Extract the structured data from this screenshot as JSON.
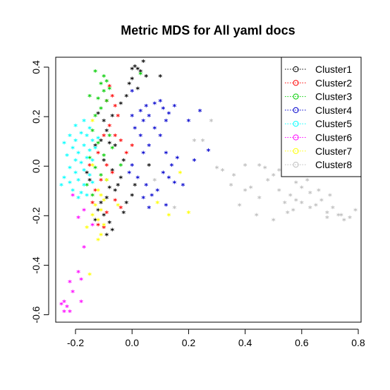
{
  "chart_data": {
    "type": "scatter",
    "title": "Metric MDS for All yaml docs",
    "xlabel": "",
    "ylabel": "",
    "xlim": [
      -0.27,
      0.81
    ],
    "ylim": [
      -0.63,
      0.44
    ],
    "x_ticks": [
      -0.2,
      0.0,
      0.2,
      0.4,
      0.6,
      0.8
    ],
    "x_tick_labels": [
      "-0.2",
      "0.0",
      "0.2",
      "0.4",
      "0.6",
      "0.8"
    ],
    "y_ticks": [
      -0.6,
      -0.4,
      -0.2,
      0.0,
      0.2,
      0.4
    ],
    "y_tick_labels": [
      "-0.6",
      "-0.4",
      "-0.2",
      "0.0",
      "0.2",
      "0.4"
    ],
    "grid": false,
    "legend_position": "top-right",
    "marker": "*",
    "series": [
      {
        "name": "Cluster1",
        "color": "#000000",
        "points": [
          [
            0.0,
            0.39
          ],
          [
            0.01,
            0.4
          ],
          [
            0.02,
            0.39
          ],
          [
            0.04,
            0.42
          ],
          [
            0.03,
            0.38
          ],
          [
            0.05,
            0.36
          ],
          [
            0.0,
            0.35
          ],
          [
            -0.01,
            0.33
          ],
          [
            0.02,
            0.31
          ],
          [
            0.1,
            0.36
          ],
          [
            -0.02,
            0.28
          ],
          [
            -0.04,
            0.25
          ],
          [
            -0.07,
            0.2
          ],
          [
            -0.1,
            0.18
          ],
          [
            -0.12,
            0.21
          ],
          [
            -0.09,
            0.14
          ],
          [
            -0.11,
            0.1
          ],
          [
            -0.08,
            0.09
          ],
          [
            -0.06,
            0.08
          ],
          [
            -0.13,
            0.08
          ],
          [
            -0.1,
            0.02
          ],
          [
            -0.07,
            -0.02
          ],
          [
            -0.04,
            -0.05
          ],
          [
            -0.05,
            -0.08
          ],
          [
            -0.08,
            -0.09
          ],
          [
            -0.06,
            -0.1
          ],
          [
            -0.09,
            -0.13
          ],
          [
            -0.11,
            -0.15
          ],
          [
            -0.12,
            -0.18
          ],
          [
            -0.1,
            -0.2
          ],
          [
            -0.08,
            -0.23
          ],
          [
            -0.07,
            -0.26
          ],
          [
            -0.03,
            -0.19
          ],
          [
            -0.02,
            -0.15
          ],
          [
            0.0,
            -0.12
          ],
          [
            -0.15,
            -0.06
          ],
          [
            -0.16,
            -0.03
          ],
          [
            -0.13,
            -0.22
          ],
          [
            -0.09,
            -0.28
          ],
          [
            0.06,
            0.0
          ],
          [
            0.01,
            -0.08
          ],
          [
            -0.03,
            0.02
          ]
        ]
      },
      {
        "name": "Cluster2",
        "color": "#ff0000",
        "points": [
          [
            -0.08,
            0.32
          ],
          [
            -0.07,
            0.28
          ],
          [
            -0.09,
            0.26
          ],
          [
            -0.06,
            0.24
          ],
          [
            -0.05,
            0.2
          ],
          [
            -0.08,
            0.16
          ],
          [
            -0.1,
            0.12
          ],
          [
            -0.06,
            0.12
          ],
          [
            -0.04,
            0.1
          ],
          [
            -0.12,
            0.05
          ],
          [
            -0.09,
            0.0
          ],
          [
            -0.07,
            -0.03
          ],
          [
            -0.11,
            -0.06
          ],
          [
            -0.13,
            -0.1
          ],
          [
            -0.06,
            -0.14
          ],
          [
            -0.04,
            -0.17
          ],
          [
            -0.09,
            -0.19
          ],
          [
            -0.12,
            -0.24
          ],
          [
            -0.02,
            0.05
          ],
          [
            0.0,
            0.08
          ],
          [
            -0.15,
            0.0
          ],
          [
            -0.14,
            -0.15
          ],
          [
            -0.1,
            -0.25
          ]
        ]
      },
      {
        "name": "Cluster3",
        "color": "#00cd00",
        "points": [
          [
            -0.13,
            0.38
          ],
          [
            -0.1,
            0.36
          ],
          [
            -0.09,
            0.34
          ],
          [
            -0.11,
            0.33
          ],
          [
            -0.08,
            0.31
          ],
          [
            -0.1,
            0.3
          ],
          [
            -0.15,
            0.28
          ],
          [
            -0.12,
            0.27
          ],
          [
            -0.09,
            0.26
          ],
          [
            -0.11,
            0.23
          ],
          [
            -0.13,
            0.2
          ],
          [
            -0.14,
            0.14
          ],
          [
            -0.08,
            0.12
          ],
          [
            -0.12,
            0.09
          ],
          [
            -0.1,
            0.04
          ],
          [
            -0.15,
            0.03
          ],
          [
            -0.13,
            -0.01
          ],
          [
            -0.11,
            -0.04
          ],
          [
            -0.09,
            -0.06
          ],
          [
            -0.16,
            -0.08
          ],
          [
            -0.14,
            -0.12
          ],
          [
            0.03,
            0.37
          ],
          [
            -0.04,
            0.0
          ],
          [
            -0.07,
            0.07
          ]
        ]
      },
      {
        "name": "Cluster4",
        "color": "#0000cd",
        "points": [
          [
            0.05,
            0.24
          ],
          [
            0.08,
            0.25
          ],
          [
            0.1,
            0.26
          ],
          [
            0.11,
            0.23
          ],
          [
            0.13,
            0.21
          ],
          [
            0.15,
            0.24
          ],
          [
            0.12,
            0.18
          ],
          [
            0.06,
            0.2
          ],
          [
            0.03,
            0.22
          ],
          [
            0.0,
            0.2
          ],
          [
            0.04,
            0.18
          ],
          [
            0.08,
            0.15
          ],
          [
            0.1,
            0.12
          ],
          [
            0.2,
            0.18
          ],
          [
            0.24,
            0.22
          ],
          [
            0.27,
            0.06
          ],
          [
            0.22,
            0.02
          ],
          [
            0.16,
            0.03
          ],
          [
            0.12,
            0.05
          ],
          [
            0.14,
            0.0
          ],
          [
            0.11,
            -0.03
          ],
          [
            0.13,
            -0.05
          ],
          [
            0.15,
            -0.07
          ],
          [
            0.09,
            -0.1
          ],
          [
            0.07,
            -0.12
          ],
          [
            0.05,
            -0.08
          ],
          [
            0.02,
            -0.05
          ],
          [
            -0.01,
            -0.03
          ],
          [
            0.0,
            0.0
          ],
          [
            0.04,
            0.05
          ],
          [
            0.06,
            0.08
          ],
          [
            0.03,
            0.12
          ],
          [
            0.01,
            0.15
          ],
          [
            0.18,
            -0.08
          ],
          [
            0.06,
            -0.17
          ],
          [
            0.12,
            -0.16
          ],
          [
            0.04,
            -0.13
          ],
          [
            0.0,
            0.3
          ]
        ]
      },
      {
        "name": "Cluster5",
        "color": "#00ffff",
        "points": [
          [
            -0.22,
            0.12
          ],
          [
            -0.2,
            0.1
          ],
          [
            -0.18,
            0.13
          ],
          [
            -0.16,
            0.12
          ],
          [
            -0.14,
            0.1
          ],
          [
            -0.12,
            0.11
          ],
          [
            -0.21,
            0.07
          ],
          [
            -0.19,
            0.05
          ],
          [
            -0.17,
            0.08
          ],
          [
            -0.15,
            0.06
          ],
          [
            -0.13,
            0.07
          ],
          [
            -0.23,
            0.04
          ],
          [
            -0.2,
            0.02
          ],
          [
            -0.18,
            0.01
          ],
          [
            -0.16,
            0.03
          ],
          [
            -0.14,
            0.02
          ],
          [
            -0.22,
            -0.01
          ],
          [
            -0.2,
            -0.03
          ],
          [
            -0.17,
            -0.02
          ],
          [
            -0.15,
            -0.04
          ],
          [
            -0.24,
            -0.05
          ],
          [
            -0.22,
            -0.07
          ],
          [
            -0.19,
            -0.06
          ],
          [
            -0.17,
            -0.08
          ],
          [
            -0.14,
            -0.07
          ],
          [
            -0.21,
            -0.1
          ],
          [
            -0.18,
            -0.11
          ],
          [
            -0.16,
            -0.12
          ],
          [
            -0.25,
            -0.08
          ],
          [
            -0.2,
            0.16
          ],
          [
            -0.17,
            0.18
          ],
          [
            -0.15,
            0.15
          ],
          [
            -0.24,
            0.09
          ],
          [
            -0.19,
            -0.13
          ]
        ]
      },
      {
        "name": "Cluster6",
        "color": "#ff00ff",
        "points": [
          [
            -0.24,
            -0.55
          ],
          [
            -0.23,
            -0.57
          ],
          [
            -0.25,
            -0.56
          ],
          [
            -0.22,
            -0.59
          ],
          [
            -0.24,
            -0.59
          ],
          [
            -0.21,
            -0.51
          ],
          [
            -0.22,
            -0.47
          ],
          [
            -0.19,
            -0.43
          ],
          [
            -0.18,
            -0.46
          ],
          [
            -0.18,
            -0.55
          ],
          [
            -0.17,
            -0.33
          ],
          [
            -0.19,
            -0.21
          ],
          [
            -0.17,
            -0.18
          ],
          [
            -0.21,
            -0.12
          ],
          [
            -0.14,
            -0.24
          ]
        ]
      },
      {
        "name": "Cluster7",
        "color": "#ffff00",
        "points": [
          [
            -0.12,
            -0.1
          ],
          [
            -0.11,
            -0.12
          ],
          [
            -0.1,
            -0.14
          ],
          [
            -0.13,
            -0.16
          ],
          [
            -0.11,
            -0.18
          ],
          [
            -0.14,
            -0.2
          ],
          [
            -0.12,
            -0.22
          ],
          [
            -0.1,
            -0.24
          ],
          [
            -0.11,
            -0.28
          ],
          [
            -0.12,
            -0.3
          ],
          [
            -0.15,
            -0.44
          ],
          [
            -0.05,
            -0.16
          ],
          [
            0.09,
            -0.15
          ],
          [
            0.13,
            -0.2
          ],
          [
            0.17,
            -0.03
          ],
          [
            0.2,
            -0.19
          ],
          [
            -0.14,
            0.0
          ],
          [
            -0.16,
            -0.25
          ],
          [
            -0.14,
            0.18
          ],
          [
            -0.09,
            -0.06
          ]
        ]
      },
      {
        "name": "Cluster8",
        "color": "#bebebe",
        "points": [
          [
            0.25,
            0.1
          ],
          [
            0.28,
            0.18
          ],
          [
            0.22,
            0.1
          ],
          [
            0.3,
            -0.01
          ],
          [
            0.32,
            -0.02
          ],
          [
            0.36,
            -0.04
          ],
          [
            0.4,
            -0.1
          ],
          [
            0.42,
            -0.09
          ],
          [
            0.45,
            -0.13
          ],
          [
            0.47,
            -0.01
          ],
          [
            0.5,
            -0.04
          ],
          [
            0.52,
            -0.1
          ],
          [
            0.54,
            -0.15
          ],
          [
            0.55,
            -0.19
          ],
          [
            0.57,
            -0.18
          ],
          [
            0.58,
            -0.14
          ],
          [
            0.6,
            -0.09
          ],
          [
            0.62,
            -0.06
          ],
          [
            0.63,
            -0.11
          ],
          [
            0.65,
            -0.16
          ],
          [
            0.67,
            -0.14
          ],
          [
            0.69,
            -0.19
          ],
          [
            0.71,
            -0.17
          ],
          [
            0.73,
            -0.2
          ],
          [
            0.75,
            -0.22
          ],
          [
            0.77,
            -0.21
          ],
          [
            0.79,
            -0.18
          ],
          [
            0.38,
            -0.16
          ],
          [
            0.44,
            -0.2
          ],
          [
            0.5,
            -0.22
          ],
          [
            0.56,
            -0.12
          ],
          [
            0.6,
            -0.15
          ],
          [
            0.63,
            -0.17
          ],
          [
            0.69,
            -0.21
          ],
          [
            0.74,
            -0.2
          ],
          [
            0.35,
            -0.08
          ],
          [
            0.15,
            -0.17
          ],
          [
            0.08,
            -0.06
          ],
          [
            0.45,
            0.0
          ],
          [
            0.52,
            -0.02
          ],
          [
            0.58,
            -0.07
          ],
          [
            0.66,
            -0.1
          ],
          [
            0.7,
            -0.12
          ],
          [
            0.4,
            0.0
          ],
          [
            0.48,
            -0.06
          ]
        ]
      }
    ]
  }
}
